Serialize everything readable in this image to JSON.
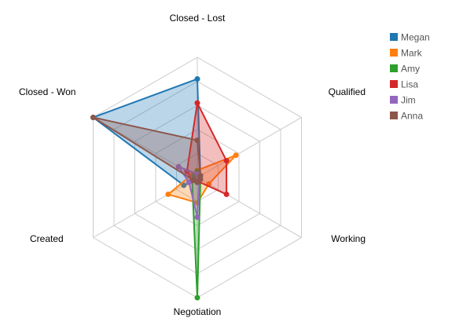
{
  "chart_data": {
    "type": "radar",
    "axes": [
      "Closed - Lost",
      "Qualified",
      "Working",
      "Negotiation",
      "Created",
      "Closed - Won"
    ],
    "max": 100,
    "levels": 5,
    "series": [
      {
        "name": "Megan",
        "color": "#1f77b4",
        "values": [
          82,
          3,
          2,
          3,
          13,
          100
        ]
      },
      {
        "name": "Mark",
        "color": "#ff7f0e",
        "values": [
          6,
          37,
          11,
          21,
          28,
          5
        ]
      },
      {
        "name": "Amy",
        "color": "#2ca02c",
        "values": [
          5,
          2,
          3,
          100,
          5,
          3
        ]
      },
      {
        "name": "Lisa",
        "color": "#d62728",
        "values": [
          62,
          28,
          28,
          3,
          5,
          10
        ]
      },
      {
        "name": "Jim",
        "color": "#9467bd",
        "values": [
          3,
          2,
          2,
          33,
          8,
          18
        ]
      },
      {
        "name": "Anna",
        "color": "#8c564b",
        "values": [
          31,
          3,
          3,
          4,
          4,
          100
        ]
      }
    ],
    "legend_position": "top-right"
  }
}
